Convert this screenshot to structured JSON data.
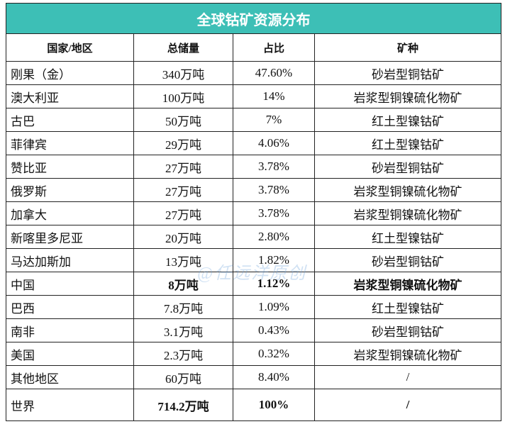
{
  "table": {
    "title": "全球钴矿资源分布",
    "header": [
      "国家/地区",
      "总储量",
      "占比",
      "矿种"
    ],
    "rows": [
      [
        "刚果（金）",
        "340万吨",
        "47.60%",
        "砂岩型铜钴矿"
      ],
      [
        "澳大利亚",
        "100万吨",
        "14%",
        "岩浆型铜镍硫化物矿"
      ],
      [
        "古巴",
        "50万吨",
        "7%",
        "红土型镍钴矿"
      ],
      [
        "菲律宾",
        "29万吨",
        "4.06%",
        "红土型镍钴矿"
      ],
      [
        "赞比亚",
        "27万吨",
        "3.78%",
        "砂岩型铜钴矿"
      ],
      [
        "俄罗斯",
        "27万吨",
        "3.78%",
        "岩浆型铜镍硫化物矿"
      ],
      [
        "加拿大",
        "27万吨",
        "3.78%",
        "岩浆型铜镍硫化物矿"
      ],
      [
        "新喀里多尼亚",
        "20万吨",
        "2.80%",
        "红土型镍钴矿"
      ],
      [
        "马达加斯加",
        "13万吨",
        "1.82%",
        "砂岩型铜钴矿"
      ],
      [
        "中国",
        "8万吨",
        "1.12%",
        "岩浆型铜镍硫化物矿"
      ],
      [
        "巴西",
        "7.8万吨",
        "1.09%",
        "红土型镍钴矿"
      ],
      [
        "南非",
        "3.1万吨",
        "0.43%",
        "砂岩型铜钴矿"
      ],
      [
        "美国",
        "2.3万吨",
        "0.32%",
        "岩浆型铜镍硫化物矿"
      ],
      [
        "其他地区",
        "60万吨",
        "8.40%",
        "/"
      ],
      [
        "世界",
        "714.2万吨",
        "100%",
        "/"
      ]
    ]
  },
  "watermark": "@任远洋原创"
}
